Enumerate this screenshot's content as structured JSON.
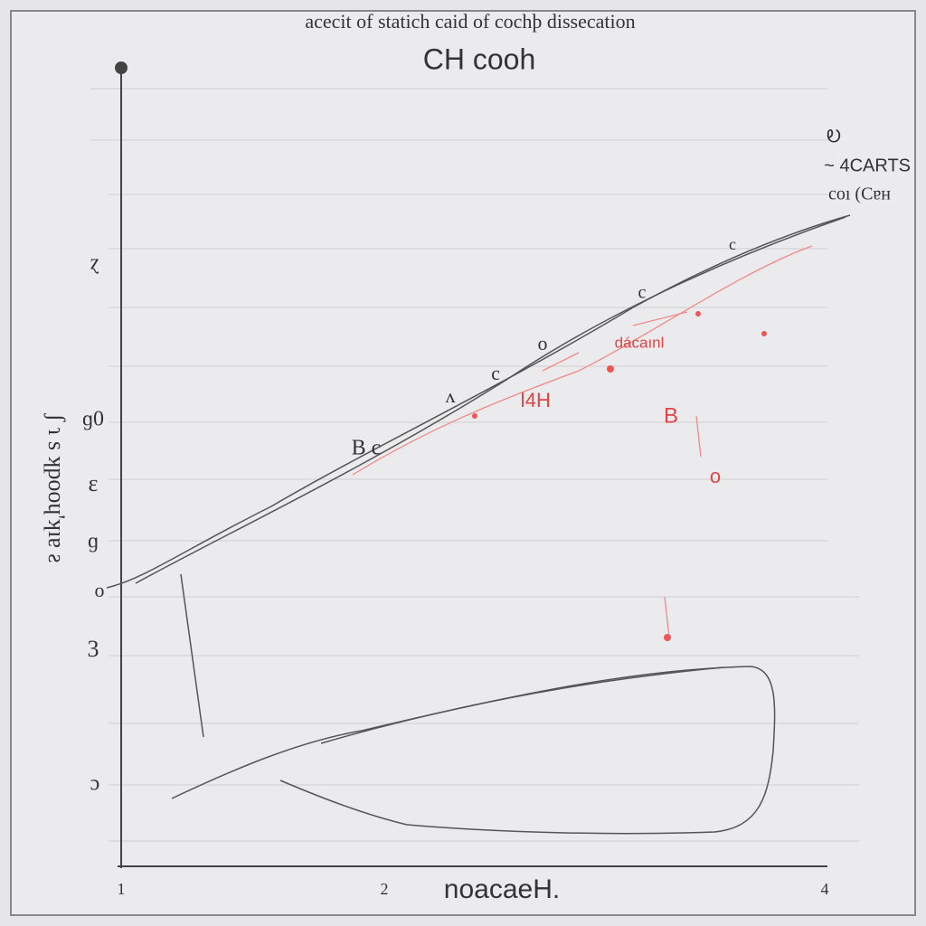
{
  "header": {
    "title": "acecit of statich caid of cochþ  dissecation",
    "subtitle": "CH cooh"
  },
  "y_axis": {
    "title": "ʃ ɿ  s ʞpooɥ'ʞıɐ ƨ",
    "labels": [
      "ɀ",
      "ɡ0",
      "ɛ",
      "ɡ",
      "o",
      "3",
      "ɔ"
    ]
  },
  "x_axis": {
    "title": "noacaeH.",
    "labels": [
      "1",
      "2",
      "4"
    ]
  },
  "legend": {
    "items": [
      "Ꭷ",
      "~ 4CARTS",
      "coı (Cɐн"
    ]
  },
  "curve_labels": [
    "c",
    "c",
    "o",
    "c",
    "ʌ",
    "B c"
  ],
  "red_labels": [
    "dácaınl",
    "ǀ4H",
    "B",
    "o"
  ]
}
